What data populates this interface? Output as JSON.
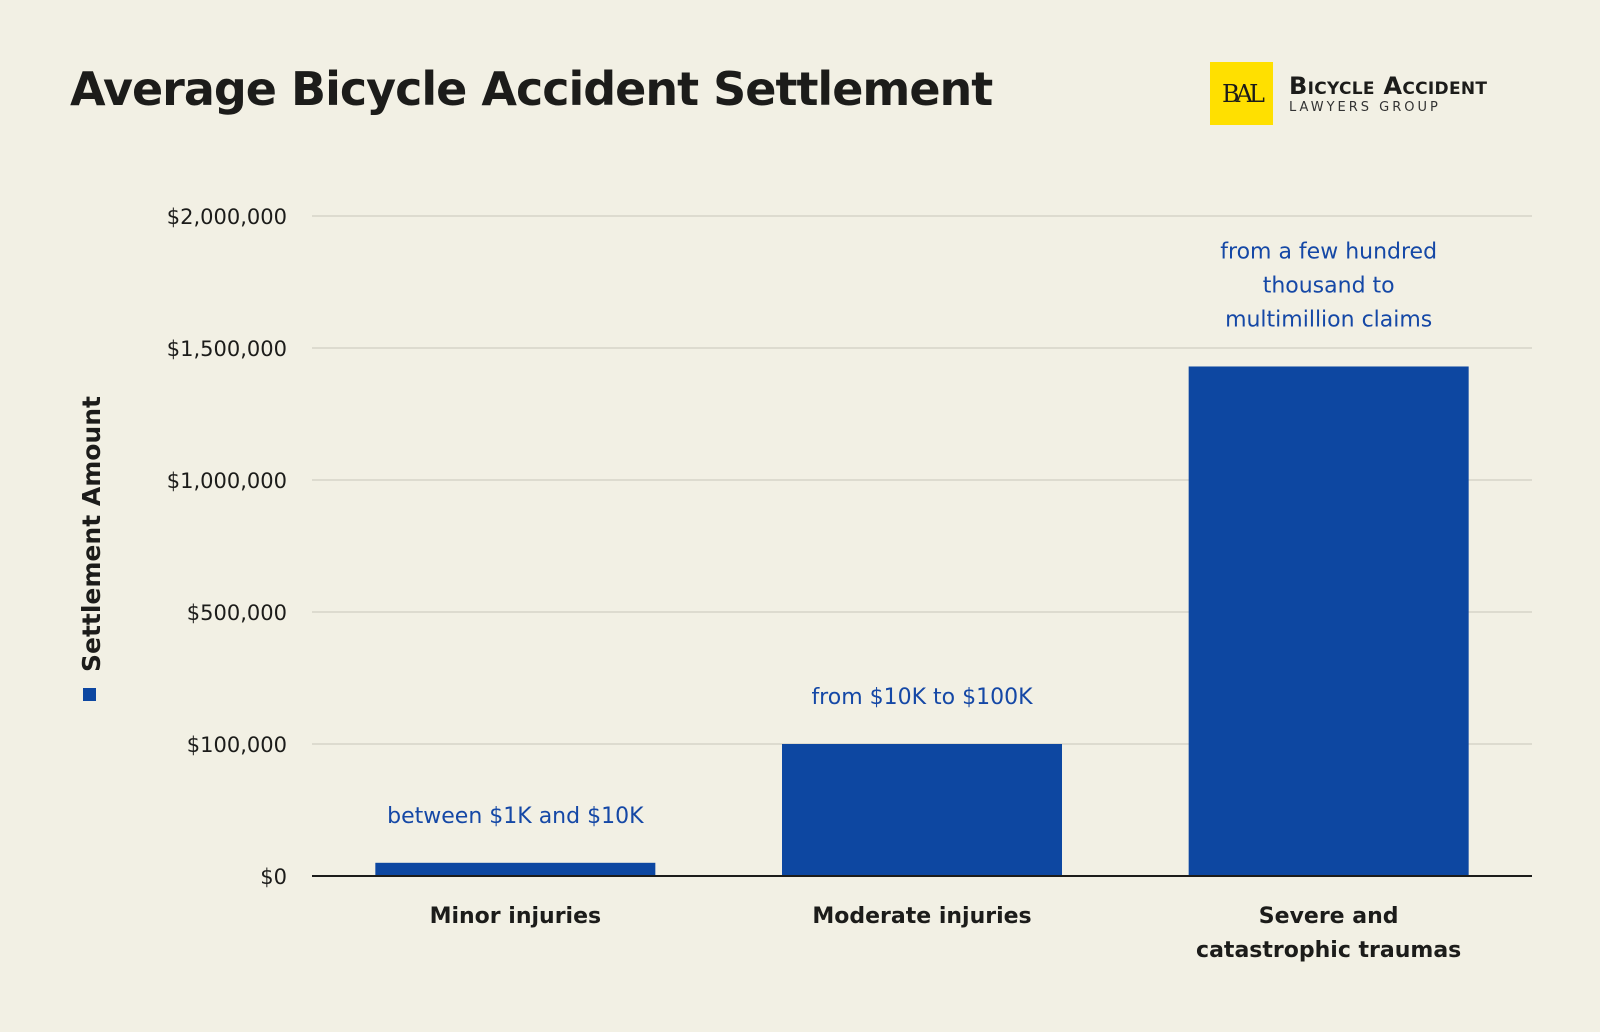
{
  "chart_data": {
    "type": "bar",
    "title": "Average Bicycle Accident Settlement",
    "xlabel": "",
    "ylabel": "Settlement Amount",
    "categories": [
      [
        "Minor injuries"
      ],
      [
        "Moderate injuries"
      ],
      [
        "Severe and",
        "catastrophic traumas"
      ]
    ],
    "values": [
      10000,
      100000,
      1430000
    ],
    "annotations": [
      [
        "between $1K and $10K"
      ],
      [
        "from $10K to $100K"
      ],
      [
        "from a few hundred",
        "thousand to",
        "multimillion claims"
      ]
    ],
    "yticks": [
      0,
      100000,
      500000,
      1000000,
      1500000,
      2000000
    ],
    "ytick_labels": [
      "$0",
      "$100,000",
      "$500,000",
      "$1,000,000",
      "$1,500,000",
      "$2,000,000"
    ],
    "ylim": [
      0,
      2000000
    ],
    "grid": true,
    "legend": "left-vertical",
    "bar_color": "#0d47a1"
  },
  "logo": {
    "mark": "BAL",
    "line1": "Bicycle Accident",
    "line2": "LAWYERS GROUP"
  }
}
